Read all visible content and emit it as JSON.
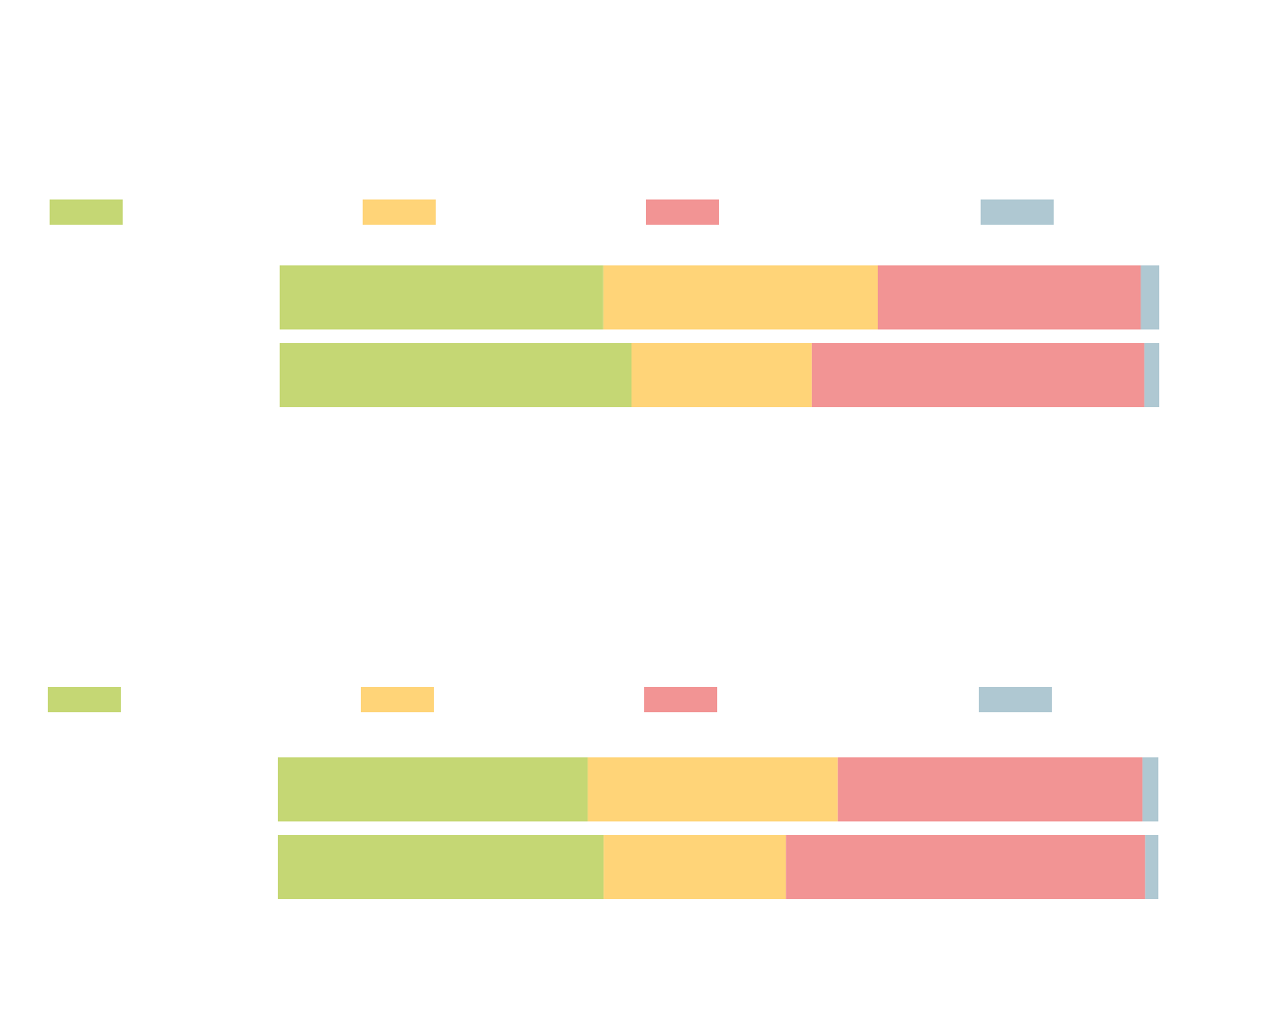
{
  "chart_data": [
    {
      "type": "bar",
      "orientation": "horizontal",
      "stacked": true,
      "categories": [
        null,
        null
      ],
      "xlim": [
        0,
        100
      ],
      "series": [
        {
          "color": "#c5d774",
          "values": [
            36.8,
            40.0
          ]
        },
        {
          "color": "#ffd478",
          "values": [
            31.2,
            20.5
          ]
        },
        {
          "color": "#f29494",
          "values": [
            29.9,
            37.8
          ]
        },
        {
          "color": "#afc8d2",
          "values": [
            2.1,
            1.7
          ]
        }
      ]
    },
    {
      "type": "bar",
      "orientation": "horizontal",
      "stacked": true,
      "categories": [
        null,
        null
      ],
      "xlim": [
        0,
        100
      ],
      "series": [
        {
          "color": "#c5d774",
          "values": [
            35.2,
            37.0
          ]
        },
        {
          "color": "#ffd478",
          "values": [
            28.4,
            20.7
          ]
        },
        {
          "color": "#f29494",
          "values": [
            34.6,
            40.8
          ]
        },
        {
          "color": "#afc8d2",
          "values": [
            1.8,
            1.5
          ]
        }
      ]
    }
  ]
}
